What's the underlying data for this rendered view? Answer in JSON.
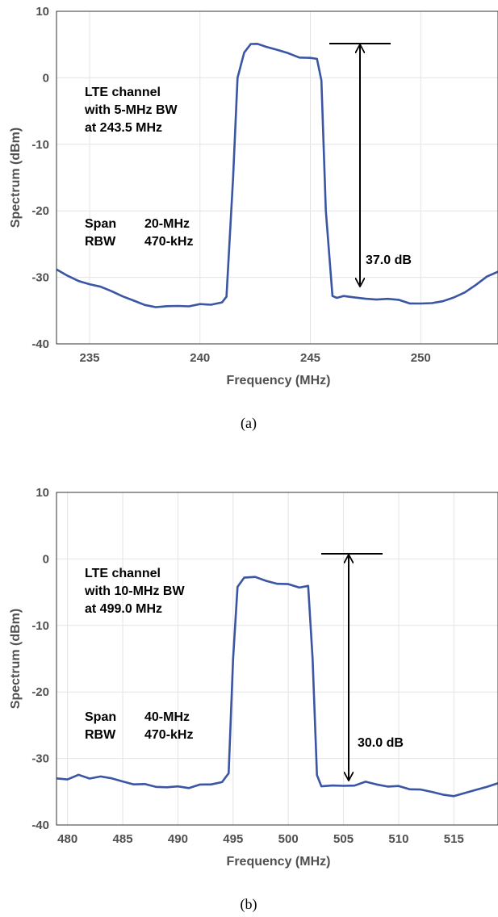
{
  "chart_data": [
    {
      "type": "line",
      "xlabel": "Frequency (MHz)",
      "ylabel": "Spectrum (dBm)",
      "xlim": [
        233.5,
        253.5
      ],
      "ylim": [
        -40,
        10
      ],
      "xticks": [
        235,
        240,
        245,
        250
      ],
      "yticks": [
        -40,
        -30,
        -20,
        -10,
        0,
        10
      ],
      "grid": true,
      "color": "#3a55a4",
      "series": [
        {
          "x": [
            233.5,
            234.0,
            234.5,
            235.0,
            235.5,
            236.0,
            236.5,
            237.0,
            237.5,
            238.0,
            238.5,
            239.0,
            239.5,
            240.0,
            240.5,
            241.0,
            241.2,
            241.5,
            241.7,
            242.0,
            242.3,
            242.6,
            243.0,
            243.5,
            244.0,
            244.5,
            245.0,
            245.3,
            245.5,
            245.7,
            246.0,
            246.2,
            246.5,
            247.0,
            247.5,
            248.0,
            248.5,
            249.0,
            249.5,
            250.0,
            250.5,
            251.0,
            251.5,
            252.0,
            252.5,
            253.0,
            253.5
          ],
          "values": [
            -28.8,
            -30.0,
            -31.0,
            -31.6,
            -32.0,
            -32.6,
            -33.2,
            -33.6,
            -34.0,
            -34.1,
            -33.8,
            -33.7,
            -33.8,
            -33.6,
            -33.9,
            -33.8,
            -33.2,
            -15.0,
            0.0,
            3.2,
            4.6,
            4.8,
            4.6,
            4.4,
            4.1,
            3.6,
            3.6,
            3.4,
            0.0,
            -20.0,
            -32.8,
            -33.4,
            -33.3,
            -33.6,
            -33.8,
            -33.8,
            -33.5,
            -33.4,
            -33.7,
            -33.5,
            -33.3,
            -33.0,
            -32.5,
            -31.9,
            -31.0,
            -30.0,
            -29.5
          ]
        }
      ],
      "annotations": {
        "channel": [
          "LTE channel",
          "with 5-MHz BW",
          "at 243.5 MHz"
        ],
        "span": {
          "label": "Span",
          "value": "20-MHz"
        },
        "rbw": {
          "label": "RBW",
          "value": "470-kHz"
        },
        "difference": "37.0 dB"
      },
      "caption": "(a)"
    },
    {
      "type": "line",
      "xlabel": "Frequency (MHz)",
      "ylabel": "Spectrum (dBm)",
      "xlim": [
        479,
        519
      ],
      "ylim": [
        -40,
        10
      ],
      "xticks": [
        480,
        485,
        490,
        495,
        500,
        505,
        510,
        515
      ],
      "yticks": [
        -40,
        -30,
        -20,
        -10,
        0,
        10
      ],
      "grid": true,
      "color": "#3a55a4",
      "series": [
        {
          "x": [
            479.0,
            480.0,
            481.0,
            482.0,
            483.0,
            484.0,
            485.0,
            486.0,
            487.0,
            488.0,
            489.0,
            490.0,
            491.0,
            492.0,
            493.0,
            494.0,
            494.6,
            495.0,
            495.4,
            496.0,
            497.0,
            498.0,
            499.0,
            500.0,
            501.0,
            501.8,
            502.2,
            502.6,
            503.0,
            504.0,
            505.0,
            506.0,
            507.0,
            508.0,
            509.0,
            510.0,
            511.0,
            512.0,
            513.0,
            514.0,
            515.0,
            516.0,
            517.0,
            518.0,
            519.0
          ],
          "values": [
            -33.0,
            -33.4,
            -32.9,
            -33.6,
            -33.3,
            -33.5,
            -33.8,
            -34.0,
            -33.7,
            -33.9,
            -33.8,
            -33.6,
            -33.9,
            -33.5,
            -33.7,
            -33.6,
            -32.5,
            -15.0,
            -4.2,
            -3.4,
            -3.2,
            -3.6,
            -3.8,
            -3.6,
            -3.9,
            -3.5,
            -15.0,
            -32.5,
            -33.8,
            -33.9,
            -34.2,
            -34.4,
            -34.0,
            -34.5,
            -34.8,
            -34.6,
            -34.9,
            -34.7,
            -34.8,
            -35.0,
            -35.1,
            -34.6,
            -34.2,
            -33.9,
            -33.6
          ]
        }
      ],
      "annotations": {
        "channel": [
          "LTE channel",
          "with 10-MHz BW",
          "at 499.0 MHz"
        ],
        "span": {
          "label": "Span",
          "value": "40-MHz"
        },
        "rbw": {
          "label": "RBW",
          "value": "470-kHz"
        },
        "difference": "30.0 dB"
      },
      "caption": "(b)"
    }
  ]
}
